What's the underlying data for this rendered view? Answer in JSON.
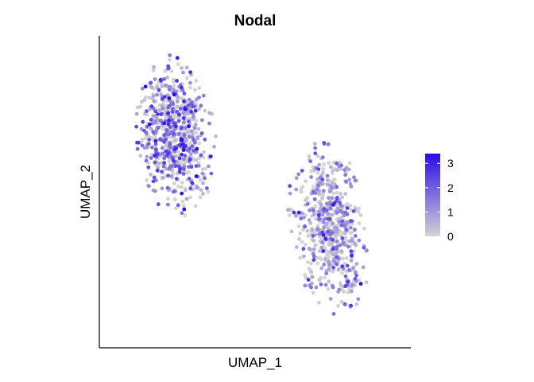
{
  "chart_data": {
    "type": "scatter",
    "title": "Nodal",
    "xlabel": "UMAP_1",
    "ylabel": "UMAP_2",
    "axis_ticks_shown": false,
    "grid": false,
    "legend_position": "right",
    "color_scale": {
      "low_color": "#d3d3d3",
      "high_color": "#2b0be8",
      "min": 0,
      "max": 3.4,
      "ticks": [
        0,
        1,
        2,
        3
      ],
      "tick_labels": [
        "0",
        "1",
        "2",
        "3"
      ]
    },
    "clusters": [
      {
        "center": [
          -8.0,
          5.5
        ],
        "extent_x": [
          -11.0,
          -3.5
        ],
        "extent_y": [
          -1.5,
          11.5
        ],
        "points": 700,
        "mean_expression": 1.3
      },
      {
        "center": [
          6.5,
          -3.5
        ],
        "extent_x": [
          3.0,
          10.5
        ],
        "extent_y": [
          -9.5,
          4.5
        ],
        "points": 600,
        "mean_expression": 0.7
      }
    ],
    "xlim": [
      -14,
      14
    ],
    "ylim": [
      -12,
      13
    ]
  }
}
